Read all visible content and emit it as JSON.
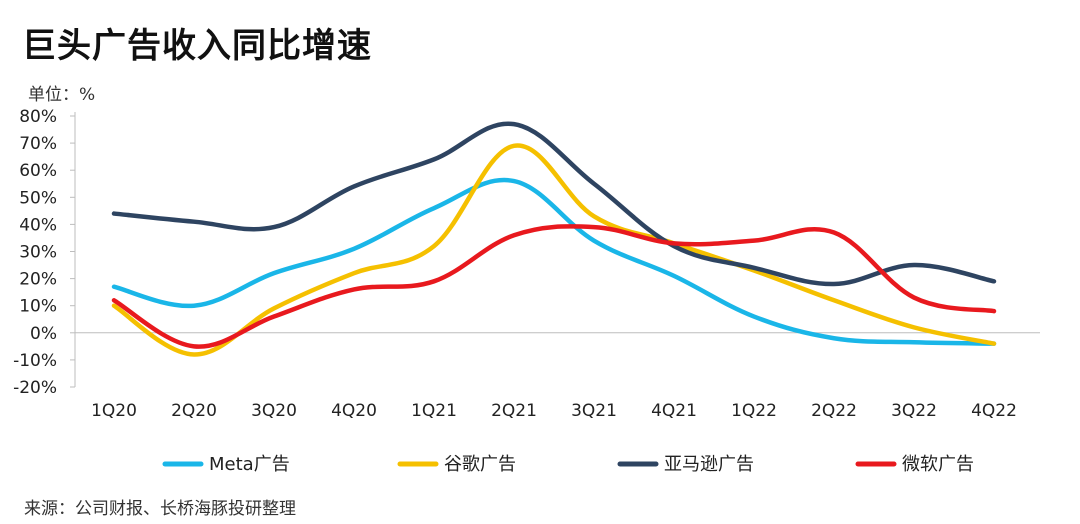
{
  "title": "巨头广告收入同比增速",
  "unit_label": "单位：%",
  "source": "来源：公司财报、长桥海豚投研整理",
  "chart_data": {
    "type": "line",
    "title": "巨头广告收入同比增速",
    "ylabel": "单位：%",
    "xlabel": "",
    "categories": [
      "1Q20",
      "2Q20",
      "3Q20",
      "4Q20",
      "1Q21",
      "2Q21",
      "3Q21",
      "4Q21",
      "1Q22",
      "2Q22",
      "3Q22",
      "4Q22"
    ],
    "ylim": [
      -20,
      80
    ],
    "yticks": [
      "80%",
      "70%",
      "60%",
      "50%",
      "40%",
      "30%",
      "20%",
      "10%",
      "0%",
      "-10%",
      "-20%"
    ],
    "legend_position": "bottom",
    "grid": false,
    "series": [
      {
        "name": "Meta广告",
        "color": "#1ab6e8",
        "values": [
          17,
          10,
          22,
          31,
          46,
          56,
          34,
          21,
          6,
          -2,
          -3.5,
          -4
        ]
      },
      {
        "name": "谷歌广告",
        "color": "#f5c000",
        "values": [
          10,
          -8,
          9,
          22,
          32,
          69,
          43,
          33,
          23,
          12,
          2,
          -4
        ]
      },
      {
        "name": "亚马逊广告",
        "color": "#2e4461",
        "values": [
          44,
          41,
          39,
          54,
          64,
          77,
          55,
          32,
          24,
          18,
          25,
          19
        ]
      },
      {
        "name": "微软广告",
        "color": "#e8191e",
        "values": [
          12,
          -5,
          6,
          16,
          19,
          36,
          39,
          33,
          34,
          37,
          13,
          8
        ]
      }
    ]
  }
}
